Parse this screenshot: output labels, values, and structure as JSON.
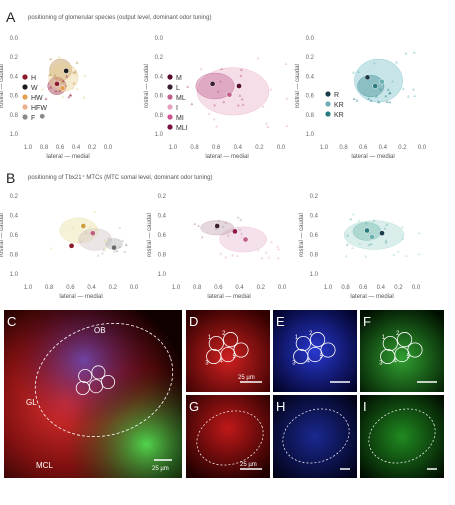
{
  "panel_letters": [
    "A",
    "B",
    "C",
    "D",
    "E",
    "F",
    "G",
    "H",
    "I"
  ],
  "row_a": {
    "title": "positioning of glomerular species (output level, dominant odor tuning)",
    "plots": [
      {
        "ylabel": "rostral — caudal",
        "xlabel": "lateral — medial",
        "yticks": [
          "0.0",
          "0.2",
          "0.4",
          "0.6",
          "0.8",
          "1.0"
        ],
        "xticks": [
          "1.0",
          "0.8",
          "0.6",
          "0.4",
          "0.2",
          "0.0"
        ],
        "legend": [
          {
            "label": "H",
            "color": "#8b1a2b"
          },
          {
            "label": "W",
            "color": "#1c1c1c"
          },
          {
            "label": "HW",
            "color": "#e0a050"
          },
          {
            "label": "HFW",
            "color": "#e9b08a"
          },
          {
            "label": "F",
            "color": "#8a8a8a"
          }
        ],
        "blobs": [
          {
            "x": 0.42,
            "y": 0.35,
            "rx": 0.12,
            "ry": 0.1,
            "color": "#b98a4a"
          },
          {
            "x": 0.38,
            "y": 0.5,
            "rx": 0.1,
            "ry": 0.08,
            "color": "#9a2840"
          },
          {
            "x": 0.45,
            "y": 0.42,
            "rx": 0.16,
            "ry": 0.13,
            "color": "#e8d090"
          }
        ],
        "points": [
          {
            "x": 0.48,
            "y": 0.36,
            "color": "#1c1c1c"
          },
          {
            "x": 0.38,
            "y": 0.48,
            "color": "#8b1a2b"
          },
          {
            "x": 0.44,
            "y": 0.52,
            "color": "#e0a050"
          },
          {
            "x": 0.22,
            "y": 0.78,
            "color": "#8a8a8a"
          }
        ]
      },
      {
        "ylabel": "rostral — caudal",
        "xlabel": "lateral — medial",
        "yticks": [
          "0.0",
          "0.2",
          "0.4",
          "0.6",
          "0.8",
          "1.0"
        ],
        "xticks": [
          "1.0",
          "0.8",
          "0.6",
          "0.4",
          "0.2",
          "0.0"
        ],
        "legend": [
          {
            "label": "M",
            "color": "#5a0a2a"
          },
          {
            "label": "L",
            "color": "#3a2030"
          },
          {
            "label": "ML",
            "color": "#c0608a"
          },
          {
            "label": "I",
            "color": "#e6a0c0"
          },
          {
            "label": "MI",
            "color": "#d05090"
          },
          {
            "label": "MLI",
            "color": "#7a1040"
          }
        ],
        "blobs": [
          {
            "x": 0.55,
            "y": 0.55,
            "rx": 0.3,
            "ry": 0.22,
            "color": "#e8b0c8"
          },
          {
            "x": 0.4,
            "y": 0.5,
            "rx": 0.16,
            "ry": 0.12,
            "color": "#c06090"
          }
        ],
        "points": [
          {
            "x": 0.38,
            "y": 0.48,
            "color": "#3a2030"
          },
          {
            "x": 0.52,
            "y": 0.58,
            "color": "#c0608a"
          },
          {
            "x": 0.6,
            "y": 0.5,
            "color": "#5a0a2a"
          }
        ]
      },
      {
        "ylabel": "rostral — caudal",
        "xlabel": "lateral — medial",
        "yticks": [
          "0.0",
          "0.2",
          "0.4",
          "0.6",
          "0.8",
          "1.0"
        ],
        "xticks": [
          "1.0",
          "0.8",
          "0.6",
          "0.4",
          "0.2",
          "0.0"
        ],
        "legend": [
          {
            "label": "R",
            "color": "#1a3a4a"
          },
          {
            "label": "KR",
            "color": "#6ab0b0"
          },
          {
            "label": "KR",
            "color": "#2a7a80"
          }
        ],
        "blobs": [
          {
            "x": 0.55,
            "y": 0.45,
            "rx": 0.22,
            "ry": 0.2,
            "color": "#7ac0c8"
          },
          {
            "x": 0.48,
            "y": 0.5,
            "rx": 0.12,
            "ry": 0.1,
            "color": "#3a8a90"
          }
        ],
        "points": [
          {
            "x": 0.45,
            "y": 0.42,
            "color": "#1a3a4a"
          },
          {
            "x": 0.52,
            "y": 0.5,
            "color": "#2a7a80"
          },
          {
            "x": 0.58,
            "y": 0.46,
            "color": "#6ab0b0"
          }
        ]
      }
    ]
  },
  "row_b": {
    "title": "positioning of Tbx21⁺ MTCs (MTC somal level, dominant odor tuning)",
    "plots": [
      {
        "ylabel": "rostral — caudal",
        "xlabel": "lateral — medial",
        "yticks": [
          "0.2",
          "0.4",
          "0.6",
          "0.8",
          "1.0"
        ],
        "xticks": [
          "1.0",
          "0.8",
          "0.6",
          "0.4",
          "0.2",
          "0.0"
        ],
        "blobs": [
          {
            "x": 0.48,
            "y": 0.45,
            "rx": 0.16,
            "ry": 0.14,
            "color": "#e8e0a0"
          },
          {
            "x": 0.62,
            "y": 0.55,
            "rx": 0.14,
            "ry": 0.12,
            "color": "#d0c0c0"
          },
          {
            "x": 0.78,
            "y": 0.6,
            "rx": 0.07,
            "ry": 0.06,
            "color": "#b0b0b0"
          }
        ],
        "points": [
          {
            "x": 0.52,
            "y": 0.4,
            "color": "#d0a040"
          },
          {
            "x": 0.6,
            "y": 0.48,
            "color": "#c06080"
          },
          {
            "x": 0.42,
            "y": 0.62,
            "color": "#8b1a2b"
          },
          {
            "x": 0.78,
            "y": 0.64,
            "color": "#6a6a6a"
          }
        ]
      },
      {
        "ylabel": "rostral — caudal",
        "xlabel": "lateral — medial",
        "yticks": [
          "0.2",
          "0.4",
          "0.6",
          "0.8",
          "1.0"
        ],
        "xticks": [
          "1.0",
          "0.8",
          "0.6",
          "0.4",
          "0.2",
          "0.0"
        ],
        "blobs": [
          {
            "x": 0.62,
            "y": 0.55,
            "rx": 0.2,
            "ry": 0.14,
            "color": "#e8b8d0"
          },
          {
            "x": 0.4,
            "y": 0.42,
            "rx": 0.14,
            "ry": 0.08,
            "color": "#c0a0b0"
          }
        ],
        "points": [
          {
            "x": 0.4,
            "y": 0.4,
            "color": "#3a2030"
          },
          {
            "x": 0.55,
            "y": 0.46,
            "color": "#8b1a4a"
          },
          {
            "x": 0.64,
            "y": 0.55,
            "color": "#c0608a"
          }
        ]
      },
      {
        "ylabel": "rostral — caudal",
        "xlabel": "lateral — medial",
        "yticks": [
          "0.2",
          "0.4",
          "0.6",
          "0.8",
          "1.0"
        ],
        "xticks": [
          "1.0",
          "0.8",
          "0.6",
          "0.4",
          "0.2",
          "0.0"
        ],
        "blobs": [
          {
            "x": 0.52,
            "y": 0.5,
            "rx": 0.3,
            "ry": 0.16,
            "color": "#a8d8d0"
          },
          {
            "x": 0.45,
            "y": 0.46,
            "rx": 0.14,
            "ry": 0.1,
            "color": "#70b8b0"
          }
        ],
        "points": [
          {
            "x": 0.6,
            "y": 0.48,
            "color": "#1a3a4a"
          },
          {
            "x": 0.45,
            "y": 0.45,
            "color": "#2a7a80"
          },
          {
            "x": 0.5,
            "y": 0.52,
            "color": "#6ab0b0"
          }
        ]
      }
    ]
  },
  "micro": {
    "c_labels": [
      "OB",
      "GL",
      "MCL"
    ],
    "c_scale": "25 µm",
    "d_scale": "25 µm",
    "g_scale": "25 µm",
    "glom_numbers": [
      "1",
      "2",
      "3",
      "4",
      "5"
    ]
  },
  "colors": {
    "red": "#d82020",
    "blue": "#2030c0",
    "green": "#30b030"
  }
}
